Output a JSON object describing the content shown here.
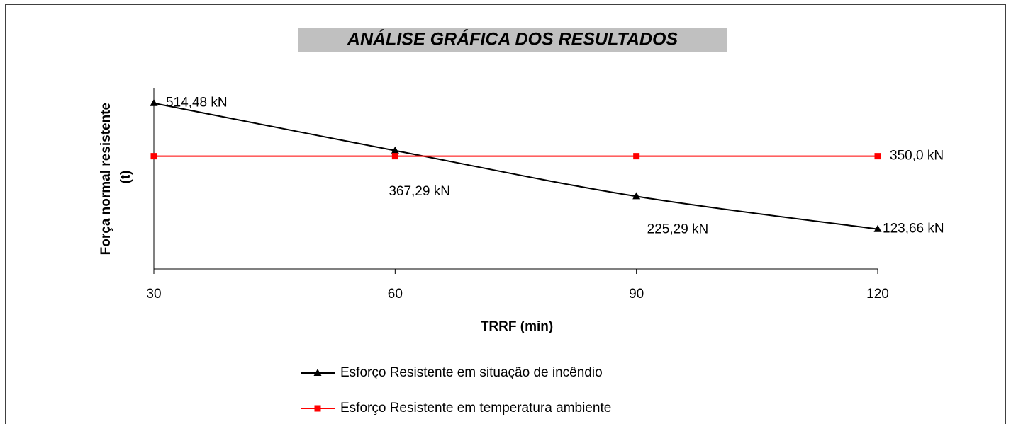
{
  "chart_data": {
    "type": "line",
    "title": "ANÁLISE GRÁFICA DOS RESULTADOS",
    "xlabel": "TRRF (min)",
    "ylabel": [
      "Força normal resistente",
      "(t)"
    ],
    "categories": [
      "30",
      "60",
      "90",
      "120"
    ],
    "ylim": [
      0,
      560
    ],
    "series": [
      {
        "name": "Esforço Resistente em situação de incêndio",
        "color": "#000000",
        "marker": "triangle",
        "smooth": true,
        "values": [
          514.48,
          367.29,
          225.29,
          123.66
        ],
        "value_labels": [
          "514,48 kN",
          "367,29 kN",
          "225,29 kN",
          "123,66 kN"
        ]
      },
      {
        "name": "Esforço Resistente em temperatura ambiente",
        "color": "#ff0000",
        "marker": "square",
        "smooth": false,
        "values": [
          350,
          350,
          350,
          350
        ],
        "value_labels": [
          null,
          null,
          null,
          "350,0 kN"
        ]
      }
    ]
  }
}
